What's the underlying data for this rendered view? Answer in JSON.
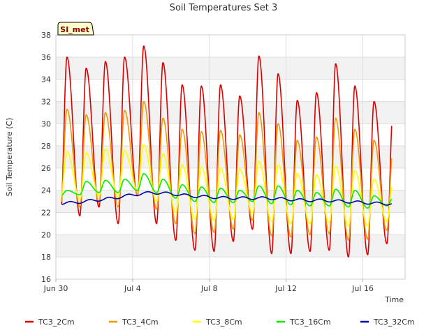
{
  "chart_data": {
    "type": "line",
    "title": "Soil Temperatures Set 3",
    "xlabel": "Time",
    "ylabel": "Soil Temperature (C)",
    "badge": "SI_met",
    "ylim": [
      16,
      38
    ],
    "yticks": [
      16,
      18,
      20,
      22,
      24,
      26,
      28,
      30,
      32,
      34,
      36,
      38
    ],
    "xlim_days": [
      0,
      18.2
    ],
    "xticks": [
      {
        "day": 0,
        "label": "Jun 30"
      },
      {
        "day": 4,
        "label": "Jul 4"
      },
      {
        "day": 8,
        "label": "Jul 8"
      },
      {
        "day": 12,
        "label": "Jul 12"
      },
      {
        "day": 16,
        "label": "Jul 16"
      }
    ],
    "grid": true,
    "legend_position": "bottom",
    "data_start_day": 0.3,
    "data_end_day": 17.5,
    "series": [
      {
        "name": "TC3_2Cm",
        "color": "#dd0000",
        "daily_max": [
          36.0,
          35.0,
          35.6,
          36.0,
          37.0,
          35.5,
          33.5,
          33.4,
          33.5,
          32.5,
          36.1,
          34.5,
          32.1,
          32.8,
          35.4,
          33.4,
          32.0,
          31.6
        ],
        "daily_min": [
          22.0,
          21.7,
          22.5,
          21.0,
          23.5,
          21.0,
          19.5,
          18.6,
          18.5,
          19.4,
          20.5,
          18.3,
          18.3,
          18.5,
          18.6,
          18.0,
          18.2,
          19.2
        ]
      },
      {
        "name": "TC3_4Cm",
        "color": "#ee9900",
        "daily_max": [
          31.3,
          30.8,
          31.0,
          31.2,
          32.0,
          30.5,
          29.5,
          29.3,
          29.4,
          29.0,
          31.0,
          30.0,
          28.5,
          28.8,
          30.5,
          29.5,
          28.5,
          28.0
        ],
        "daily_min": [
          22.5,
          22.5,
          22.9,
          22.5,
          23.6,
          22.3,
          21.0,
          20.1,
          20.2,
          20.5,
          21.3,
          19.9,
          19.8,
          20.0,
          20.1,
          19.5,
          19.6,
          20.4
        ]
      },
      {
        "name": "TC3_8Cm",
        "color": "#ffff00",
        "daily_max": [
          27.5,
          27.4,
          27.7,
          27.6,
          28.1,
          27.3,
          26.3,
          26.1,
          26.0,
          25.9,
          26.6,
          26.3,
          25.5,
          25.4,
          26.2,
          25.8,
          25.0,
          24.8
        ],
        "daily_min": [
          23.2,
          23.2,
          23.5,
          23.4,
          24.0,
          23.0,
          22.0,
          21.4,
          21.3,
          21.4,
          22.0,
          21.2,
          21.0,
          21.0,
          21.1,
          20.8,
          20.8,
          21.2
        ]
      },
      {
        "name": "TC3_16Cm",
        "color": "#00ee00",
        "daily_max": [
          24.0,
          24.8,
          24.9,
          25.0,
          25.5,
          25.0,
          24.5,
          24.3,
          24.2,
          24.0,
          24.4,
          24.4,
          24.0,
          23.8,
          24.1,
          24.0,
          23.5,
          23.3
        ],
        "daily_min": [
          23.5,
          23.6,
          23.8,
          23.8,
          24.0,
          23.8,
          23.3,
          23.0,
          22.9,
          22.9,
          23.0,
          22.8,
          22.7,
          22.6,
          22.6,
          22.5,
          22.4,
          22.6
        ]
      },
      {
        "name": "TC3_32Cm",
        "color": "#0000aa",
        "daily_mean": [
          22.8,
          22.9,
          23.1,
          23.3,
          23.6,
          23.8,
          23.7,
          23.5,
          23.4,
          23.3,
          23.3,
          23.3,
          23.2,
          23.1,
          23.1,
          23.0,
          22.9,
          22.8
        ],
        "daily_amplitude": 0.12
      }
    ]
  }
}
